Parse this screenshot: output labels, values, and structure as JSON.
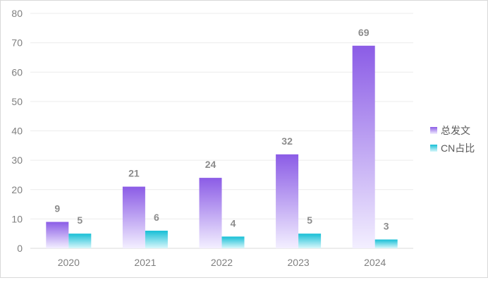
{
  "chart_data": {
    "type": "bar",
    "categories": [
      "2020",
      "2021",
      "2022",
      "2023",
      "2024"
    ],
    "series": [
      {
        "name": "总发文",
        "values": [
          9,
          21,
          24,
          32,
          69
        ],
        "color": "#8b5ce6"
      },
      {
        "name": "CN占比",
        "values": [
          5,
          6,
          4,
          5,
          3
        ],
        "color": "#17bfd6"
      }
    ],
    "ylim": [
      0,
      80
    ],
    "yticks": [
      "0",
      "10",
      "20",
      "30",
      "40",
      "50",
      "60",
      "70",
      "80"
    ],
    "grid": true,
    "legend_position": "right",
    "data_labels": true
  }
}
